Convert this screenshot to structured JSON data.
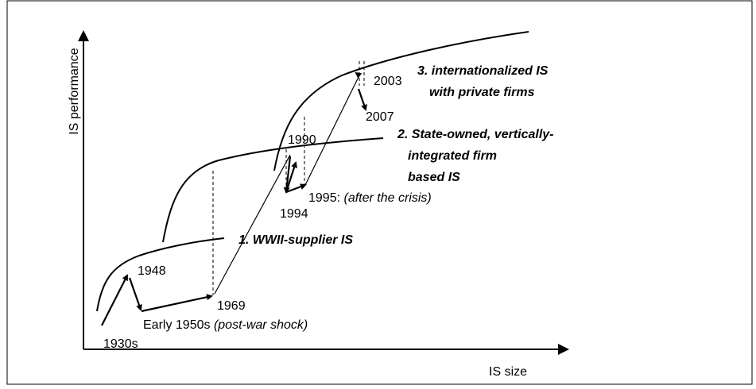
{
  "axes": {
    "y_label": "IS performance",
    "x_label": "IS size"
  },
  "regimes": [
    {
      "lines": [
        "1. WWII-supplier IS"
      ]
    },
    {
      "lines": [
        "2. State-owned, vertically-",
        "integrated firm",
        "based IS"
      ]
    },
    {
      "lines": [
        "3. internationalized IS",
        "with private firms"
      ]
    }
  ],
  "events": [
    {
      "label": "1930s"
    },
    {
      "label": "1948"
    },
    {
      "label": "Early 1950s",
      "note": "(post-war shock)"
    },
    {
      "label": "1969"
    },
    {
      "label": "1990"
    },
    {
      "label": "1994"
    },
    {
      "label": "1995:",
      "note": "(after the crisis)"
    },
    {
      "label": "2003"
    },
    {
      "label": "2007"
    }
  ]
}
